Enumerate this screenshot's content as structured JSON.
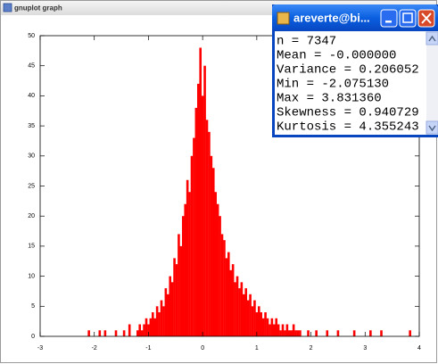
{
  "windows": {
    "gnuplot_title": "gnuplot graph",
    "terminal_title": "areverte@bi...",
    "terminal_lines": [
      "n = 7347",
      "Mean = -0.000000",
      "Variance = 0.206052",
      "Min = -2.075130",
      "Max = 3.831360",
      "Skewness = 0.940729",
      "Kurtosis = 4.355243"
    ]
  },
  "chart_data": {
    "type": "bar",
    "color": "#ff0000",
    "x": [
      -2.1,
      -1.9,
      -1.8,
      -1.6,
      -1.45,
      -1.35,
      -1.2,
      -1.16,
      -1.12,
      -1.08,
      -1.04,
      -1.0,
      -0.96,
      -0.92,
      -0.88,
      -0.84,
      -0.8,
      -0.76,
      -0.72,
      -0.68,
      -0.64,
      -0.6,
      -0.56,
      -0.52,
      -0.48,
      -0.44,
      -0.4,
      -0.36,
      -0.32,
      -0.28,
      -0.24,
      -0.2,
      -0.16,
      -0.12,
      -0.08,
      -0.04,
      0,
      0.04,
      0.08,
      0.12,
      0.16,
      0.2,
      0.24,
      0.28,
      0.32,
      0.36,
      0.4,
      0.44,
      0.48,
      0.52,
      0.56,
      0.6,
      0.64,
      0.68,
      0.72,
      0.76,
      0.8,
      0.84,
      0.88,
      0.92,
      0.96,
      1.0,
      1.04,
      1.08,
      1.12,
      1.16,
      1.2,
      1.24,
      1.28,
      1.32,
      1.36,
      1.4,
      1.44,
      1.48,
      1.52,
      1.56,
      1.6,
      1.64,
      1.68,
      1.72,
      1.76,
      1.8,
      1.95,
      2.1,
      2.3,
      2.5,
      2.8,
      3.1,
      3.3,
      3.83
    ],
    "values": [
      1,
      1,
      1,
      1,
      1,
      2,
      1,
      2,
      1,
      2,
      3,
      2,
      3,
      4,
      3,
      5,
      4,
      6,
      5,
      8,
      7,
      10,
      9,
      13,
      12,
      17,
      15,
      20,
      22,
      26,
      24,
      30,
      33,
      38,
      42,
      48,
      40,
      45,
      36,
      34,
      30,
      28,
      24,
      22,
      20,
      17,
      16,
      13,
      14,
      11,
      12,
      9,
      10,
      8,
      9,
      7,
      8,
      6,
      7,
      5,
      6,
      4,
      5,
      4,
      3,
      4,
      3,
      2,
      3,
      2,
      3,
      2,
      1,
      2,
      1,
      2,
      1,
      1,
      2,
      1,
      1,
      1,
      1,
      1,
      1,
      1,
      1,
      1,
      1,
      1
    ],
    "xlim": [
      -3,
      4
    ],
    "xticks": [
      -3,
      -2,
      -1,
      0,
      1,
      2,
      3,
      4
    ],
    "ylim": [
      0,
      50
    ],
    "yticks": [
      0,
      5,
      10,
      15,
      20,
      25,
      30,
      35,
      40,
      45,
      50
    ]
  }
}
